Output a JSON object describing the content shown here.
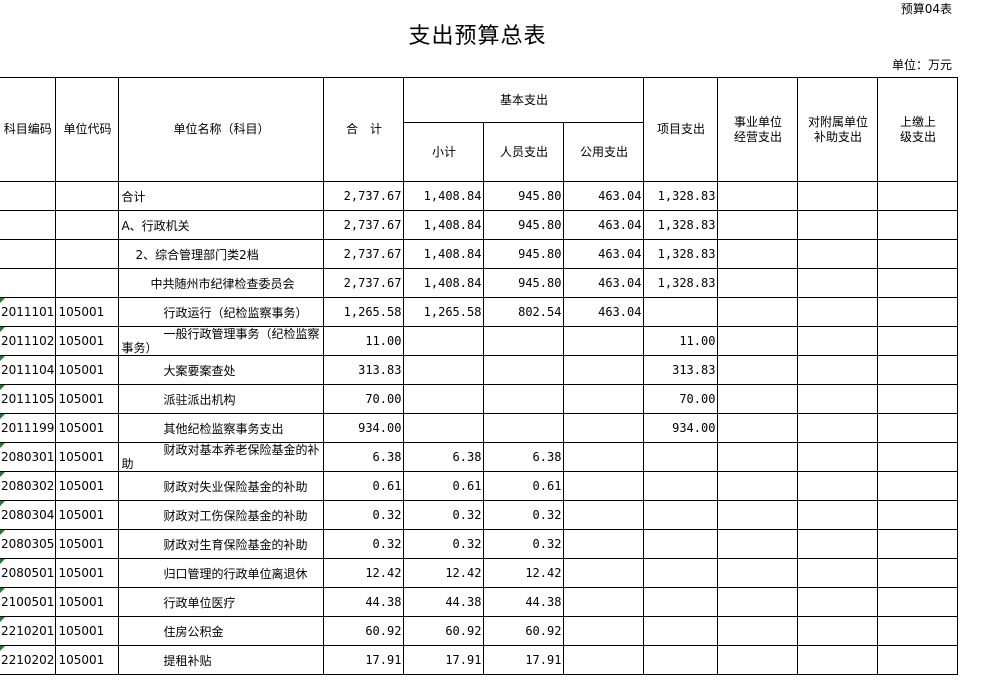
{
  "form_no": "预算04表",
  "title": "支出预算总表",
  "unit": "单位：万元",
  "headers": {
    "subject_code": "科目编码",
    "unit_code": "单位代码",
    "unit_name": "单位名称（科目）",
    "total": "合　计",
    "basic": "基本支出",
    "subtotal": "小计",
    "personnel": "人员支出",
    "public": "公用支出",
    "project": "项目支出",
    "business": "事业单位经营支出",
    "subsidy": "对附属单位补助支出",
    "upper": "上缴上级支出"
  },
  "rows": [
    {
      "code": "",
      "unit": "",
      "name": "合计",
      "indent": 0,
      "total": "2,737.67",
      "subtotal": "1,408.84",
      "personnel": "945.80",
      "public": "463.04",
      "project": "1,328.83"
    },
    {
      "code": "",
      "unit": "",
      "name": "A、行政机关",
      "indent": 0,
      "total": "2,737.67",
      "subtotal": "1,408.84",
      "personnel": "945.80",
      "public": "463.04",
      "project": "1,328.83"
    },
    {
      "code": "",
      "unit": "",
      "name": "2、综合管理部门类2档",
      "indent": 1,
      "total": "2,737.67",
      "subtotal": "1,408.84",
      "personnel": "945.80",
      "public": "463.04",
      "project": "1,328.83"
    },
    {
      "code": "",
      "unit": "",
      "name": "中共随州市纪律检查委员会",
      "indent": 2,
      "total": "2,737.67",
      "subtotal": "1,408.84",
      "personnel": "945.80",
      "public": "463.04",
      "project": "1,328.83"
    },
    {
      "code": "2011101",
      "unit": "105001",
      "name": "行政运行（纪检监察事务）",
      "indent": 3,
      "total": "1,265.58",
      "subtotal": "1,265.58",
      "personnel": "802.54",
      "public": "463.04",
      "project": ""
    },
    {
      "code": "2011102",
      "unit": "105001",
      "name": "一般行政管理事务（纪检监察事务）",
      "indent": 3,
      "total": "11.00",
      "subtotal": "",
      "personnel": "",
      "public": "",
      "project": "11.00"
    },
    {
      "code": "2011104",
      "unit": "105001",
      "name": "大案要案查处",
      "indent": 3,
      "total": "313.83",
      "subtotal": "",
      "personnel": "",
      "public": "",
      "project": "313.83"
    },
    {
      "code": "2011105",
      "unit": "105001",
      "name": "派驻派出机构",
      "indent": 3,
      "total": "70.00",
      "subtotal": "",
      "personnel": "",
      "public": "",
      "project": "70.00"
    },
    {
      "code": "2011199",
      "unit": "105001",
      "name": "其他纪检监察事务支出",
      "indent": 3,
      "total": "934.00",
      "subtotal": "",
      "personnel": "",
      "public": "",
      "project": "934.00"
    },
    {
      "code": "2080301",
      "unit": "105001",
      "name": "财政对基本养老保险基金的补助",
      "indent": 3,
      "total": "6.38",
      "subtotal": "6.38",
      "personnel": "6.38",
      "public": "",
      "project": ""
    },
    {
      "code": "2080302",
      "unit": "105001",
      "name": "财政对失业保险基金的补助",
      "indent": 3,
      "total": "0.61",
      "subtotal": "0.61",
      "personnel": "0.61",
      "public": "",
      "project": ""
    },
    {
      "code": "2080304",
      "unit": "105001",
      "name": "财政对工伤保险基金的补助",
      "indent": 3,
      "total": "0.32",
      "subtotal": "0.32",
      "personnel": "0.32",
      "public": "",
      "project": ""
    },
    {
      "code": "2080305",
      "unit": "105001",
      "name": "财政对生育保险基金的补助",
      "indent": 3,
      "total": "0.32",
      "subtotal": "0.32",
      "personnel": "0.32",
      "public": "",
      "project": ""
    },
    {
      "code": "2080501",
      "unit": "105001",
      "name": "归口管理的行政单位离退休",
      "indent": 3,
      "total": "12.42",
      "subtotal": "12.42",
      "personnel": "12.42",
      "public": "",
      "project": ""
    },
    {
      "code": "2100501",
      "unit": "105001",
      "name": "行政单位医疗",
      "indent": 3,
      "total": "44.38",
      "subtotal": "44.38",
      "personnel": "44.38",
      "public": "",
      "project": ""
    },
    {
      "code": "2210201",
      "unit": "105001",
      "name": "住房公积金",
      "indent": 3,
      "total": "60.92",
      "subtotal": "60.92",
      "personnel": "60.92",
      "public": "",
      "project": ""
    },
    {
      "code": "2210202",
      "unit": "105001",
      "name": "提租补贴",
      "indent": 3,
      "total": "17.91",
      "subtotal": "17.91",
      "personnel": "17.91",
      "public": "",
      "project": ""
    }
  ]
}
